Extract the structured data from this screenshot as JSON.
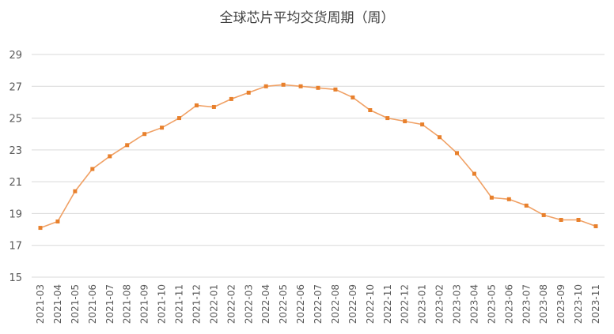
{
  "chart_data": {
    "type": "line",
    "title": "全球芯片平均交货周期（周）",
    "xlabel": "",
    "ylabel": "",
    "ylim": [
      15,
      29
    ],
    "yticks": [
      15,
      17,
      19,
      21,
      23,
      25,
      27,
      29
    ],
    "grid": true,
    "legend": "none",
    "line_color": "#F0A064",
    "marker_color": "#E8802C",
    "categories": [
      "2021-03",
      "2021-04",
      "2021-05",
      "2021-06",
      "2021-07",
      "2021-08",
      "2021-09",
      "2021-10",
      "2021-11",
      "2021-12",
      "2022-01",
      "2022-02",
      "2022-03",
      "2022-04",
      "2022-05",
      "2022-06",
      "2022-07",
      "2022-08",
      "2022-09",
      "2022-10",
      "2022-11",
      "2022-12",
      "2023-01",
      "2023-02",
      "2023-03",
      "2023-04",
      "2023-05",
      "2023-06",
      "2023-07",
      "2023-08",
      "2023-09",
      "2023-10",
      "2023-11"
    ],
    "values": [
      18.1,
      18.5,
      20.4,
      21.8,
      22.6,
      23.3,
      24.0,
      24.4,
      25.0,
      25.8,
      25.7,
      26.2,
      26.6,
      27.0,
      27.1,
      27.0,
      26.9,
      26.8,
      26.3,
      25.5,
      25.0,
      24.8,
      24.6,
      23.8,
      22.8,
      21.5,
      20.0,
      19.9,
      19.5,
      18.9,
      18.6,
      18.6,
      18.2
    ]
  }
}
